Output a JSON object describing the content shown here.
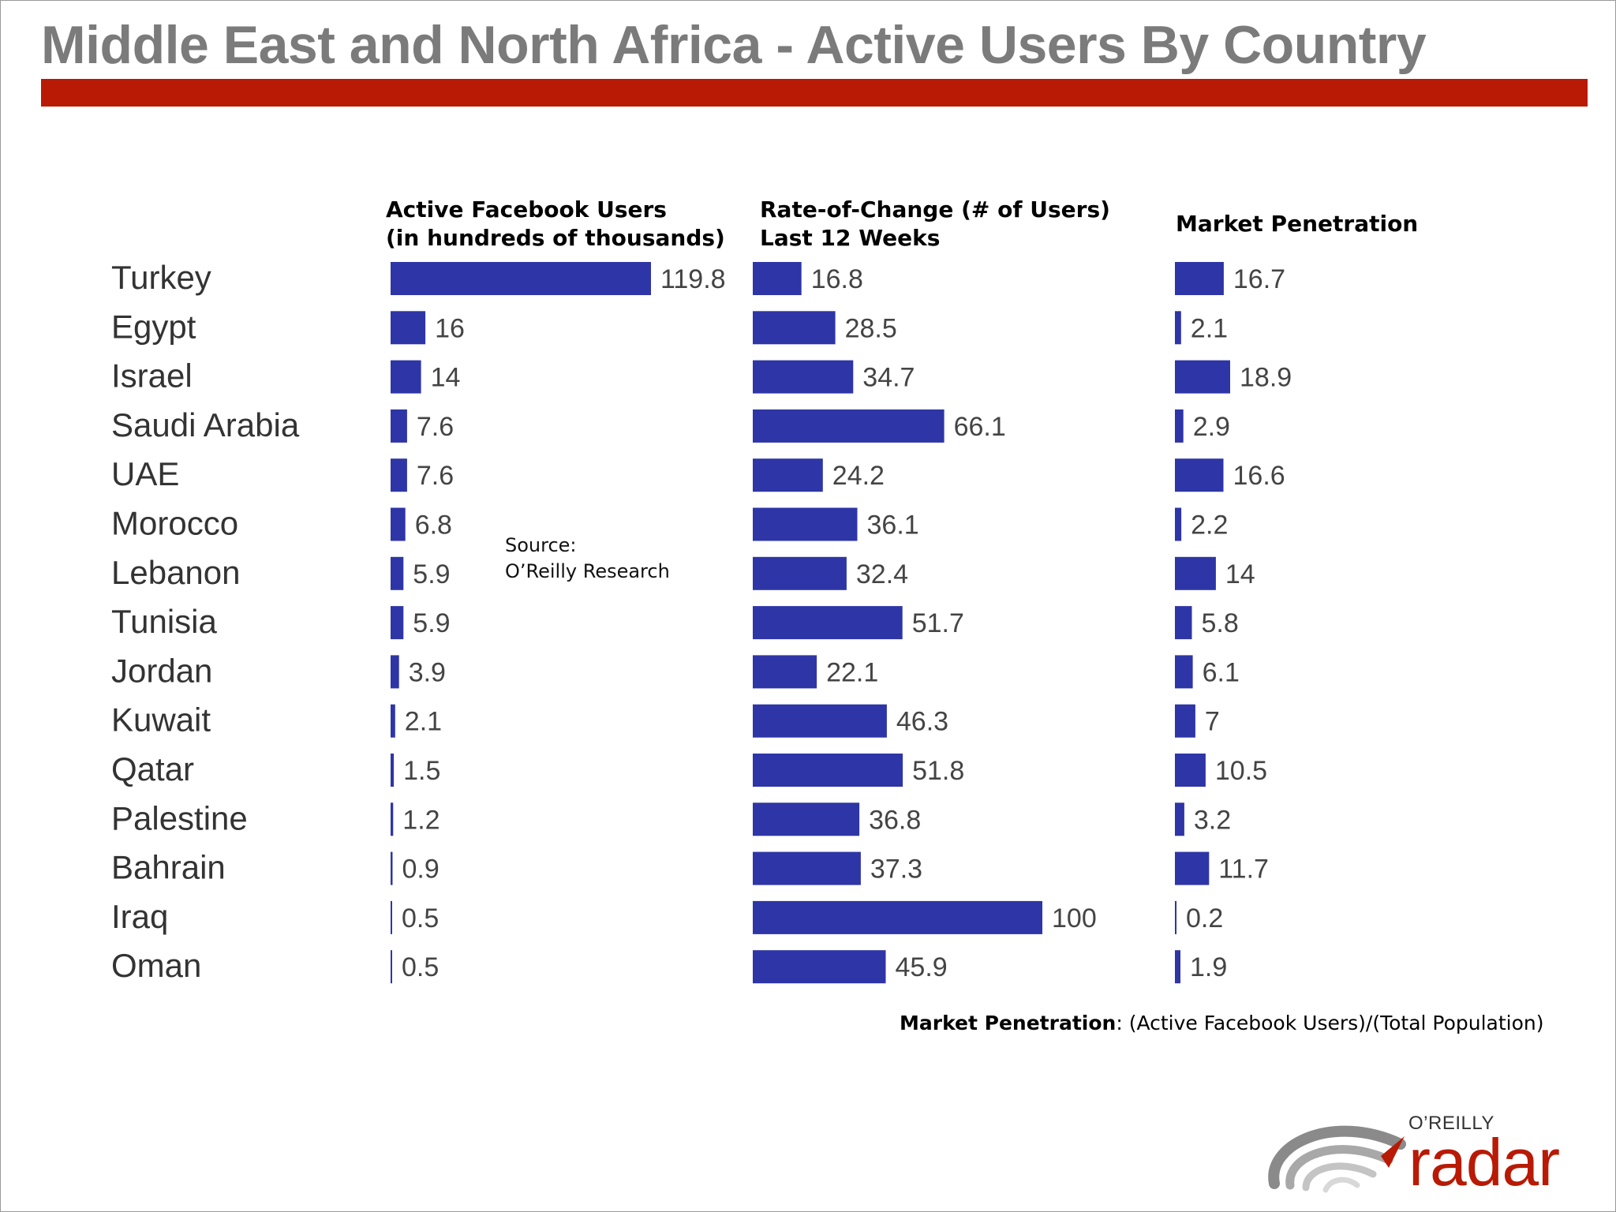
{
  "title": "Middle East and North Africa - Active Users By Country",
  "colors": {
    "title_text": "#7b7b7b",
    "title_bar": "#b81a05",
    "bar": "#2e35a6",
    "label_text": "#444444"
  },
  "columns": [
    {
      "line1": "Active Facebook Users",
      "line2": "(in hundreds of thousands)"
    },
    {
      "line1": "Rate-of-Change (# of Users)",
      "line2": "Last 12 Weeks"
    },
    {
      "line1": "Market Penetration",
      "line2": ""
    }
  ],
  "source": {
    "line1": "Source:",
    "line2": "O’Reilly Research"
  },
  "footnote": {
    "term": "Market Penetration",
    "definition": ":  (Active Facebook Users)/(Total Population)"
  },
  "logo": {
    "brand": "O’REILLY",
    "product": "radar",
    "icon": "radar-swirl-icon"
  },
  "chart_data": {
    "type": "bar",
    "orientation": "horizontal",
    "categories": [
      "Turkey",
      "Egypt",
      "Israel",
      "Saudi Arabia",
      "UAE",
      "Morocco",
      "Lebanon",
      "Tunisia",
      "Jordan",
      "Kuwait",
      "Qatar",
      "Palestine",
      "Bahrain",
      "Iraq",
      "Oman"
    ],
    "series": [
      {
        "name": "Active Facebook Users (in hundreds of thousands)",
        "max": 119.8,
        "values": [
          119.8,
          16,
          14,
          7.6,
          7.6,
          6.8,
          5.9,
          5.9,
          3.9,
          2.1,
          1.5,
          1.2,
          0.9,
          0.5,
          0.5
        ],
        "labels": [
          "119.8",
          "16",
          "14",
          "7.6",
          "7.6",
          "6.8",
          "5.9",
          "5.9",
          "3.9",
          "2.1",
          "1.5",
          "1.2",
          "0.9",
          "0.5",
          "0.5"
        ]
      },
      {
        "name": "Rate-of-Change (# of Users) Last 12 Weeks",
        "max": 100,
        "values": [
          16.8,
          28.5,
          34.7,
          66.1,
          24.2,
          36.1,
          32.4,
          51.7,
          22.1,
          46.3,
          51.8,
          36.8,
          37.3,
          100,
          45.9
        ],
        "labels": [
          "16.8",
          "28.5",
          "34.7",
          "66.1",
          "24.2",
          "36.1",
          "32.4",
          "51.7",
          "22.1",
          "46.3",
          "51.8",
          "36.8",
          "37.3",
          "100",
          "45.9"
        ]
      },
      {
        "name": "Market Penetration",
        "max": 18.9,
        "values": [
          16.7,
          2.1,
          18.9,
          2.9,
          16.6,
          2.2,
          14,
          5.8,
          6.1,
          7,
          10.5,
          3.2,
          11.7,
          0.2,
          1.9
        ],
        "labels": [
          "16.7",
          "2.1",
          "18.9",
          "2.9",
          "16.6",
          "2.2",
          "14",
          "5.8",
          "6.1",
          "7",
          "10.5",
          "3.2",
          "11.7",
          "0.2",
          "1.9"
        ]
      }
    ]
  }
}
